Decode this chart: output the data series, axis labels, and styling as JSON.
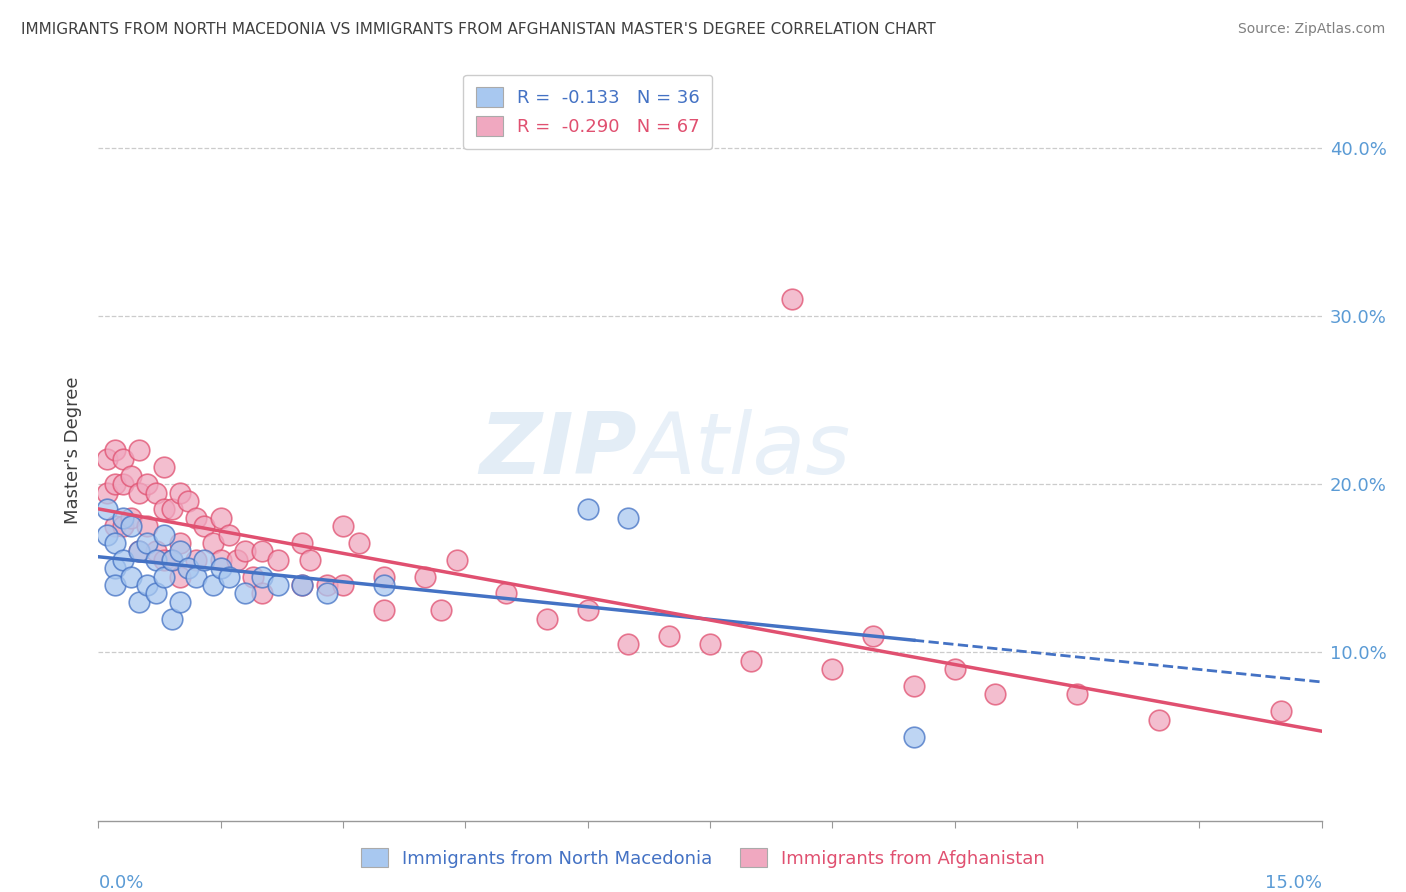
{
  "title": "IMMIGRANTS FROM NORTH MACEDONIA VS IMMIGRANTS FROM AFGHANISTAN MASTER'S DEGREE CORRELATION CHART",
  "source": "Source: ZipAtlas.com",
  "ylabel": "Master's Degree",
  "right_yticks": [
    "10.0%",
    "20.0%",
    "30.0%",
    "40.0%"
  ],
  "right_ytick_vals": [
    0.1,
    0.2,
    0.3,
    0.4
  ],
  "xlim": [
    0.0,
    0.15
  ],
  "ylim": [
    0.0,
    0.44
  ],
  "blue_color": "#a8c8f0",
  "pink_color": "#f0a8c0",
  "blue_line_color": "#4472c4",
  "pink_line_color": "#e05070",
  "title_color": "#404040",
  "source_color": "#808080",
  "blue_scatter_x": [
    0.001,
    0.001,
    0.002,
    0.002,
    0.002,
    0.003,
    0.003,
    0.004,
    0.004,
    0.005,
    0.005,
    0.006,
    0.006,
    0.007,
    0.007,
    0.008,
    0.008,
    0.009,
    0.009,
    0.01,
    0.01,
    0.011,
    0.012,
    0.013,
    0.014,
    0.015,
    0.016,
    0.018,
    0.02,
    0.022,
    0.025,
    0.028,
    0.035,
    0.06,
    0.065,
    0.1
  ],
  "blue_scatter_y": [
    0.185,
    0.17,
    0.165,
    0.15,
    0.14,
    0.18,
    0.155,
    0.175,
    0.145,
    0.16,
    0.13,
    0.165,
    0.14,
    0.155,
    0.135,
    0.17,
    0.145,
    0.155,
    0.12,
    0.16,
    0.13,
    0.15,
    0.145,
    0.155,
    0.14,
    0.15,
    0.145,
    0.135,
    0.145,
    0.14,
    0.14,
    0.135,
    0.14,
    0.185,
    0.18,
    0.05
  ],
  "pink_scatter_x": [
    0.001,
    0.001,
    0.002,
    0.002,
    0.002,
    0.003,
    0.003,
    0.003,
    0.004,
    0.004,
    0.005,
    0.005,
    0.005,
    0.006,
    0.006,
    0.007,
    0.007,
    0.008,
    0.008,
    0.008,
    0.009,
    0.009,
    0.01,
    0.01,
    0.01,
    0.011,
    0.012,
    0.012,
    0.013,
    0.014,
    0.015,
    0.015,
    0.016,
    0.017,
    0.018,
    0.019,
    0.02,
    0.02,
    0.022,
    0.025,
    0.025,
    0.026,
    0.028,
    0.03,
    0.03,
    0.032,
    0.035,
    0.035,
    0.04,
    0.042,
    0.044,
    0.05,
    0.055,
    0.06,
    0.065,
    0.07,
    0.075,
    0.08,
    0.085,
    0.09,
    0.095,
    0.1,
    0.105,
    0.11,
    0.12,
    0.13,
    0.145
  ],
  "pink_scatter_y": [
    0.215,
    0.195,
    0.22,
    0.2,
    0.175,
    0.215,
    0.2,
    0.175,
    0.205,
    0.18,
    0.22,
    0.195,
    0.16,
    0.2,
    0.175,
    0.195,
    0.16,
    0.21,
    0.185,
    0.155,
    0.185,
    0.155,
    0.195,
    0.165,
    0.145,
    0.19,
    0.18,
    0.155,
    0.175,
    0.165,
    0.18,
    0.155,
    0.17,
    0.155,
    0.16,
    0.145,
    0.16,
    0.135,
    0.155,
    0.165,
    0.14,
    0.155,
    0.14,
    0.175,
    0.14,
    0.165,
    0.145,
    0.125,
    0.145,
    0.125,
    0.155,
    0.135,
    0.12,
    0.125,
    0.105,
    0.11,
    0.105,
    0.095,
    0.31,
    0.09,
    0.11,
    0.08,
    0.09,
    0.075,
    0.075,
    0.06,
    0.065
  ]
}
